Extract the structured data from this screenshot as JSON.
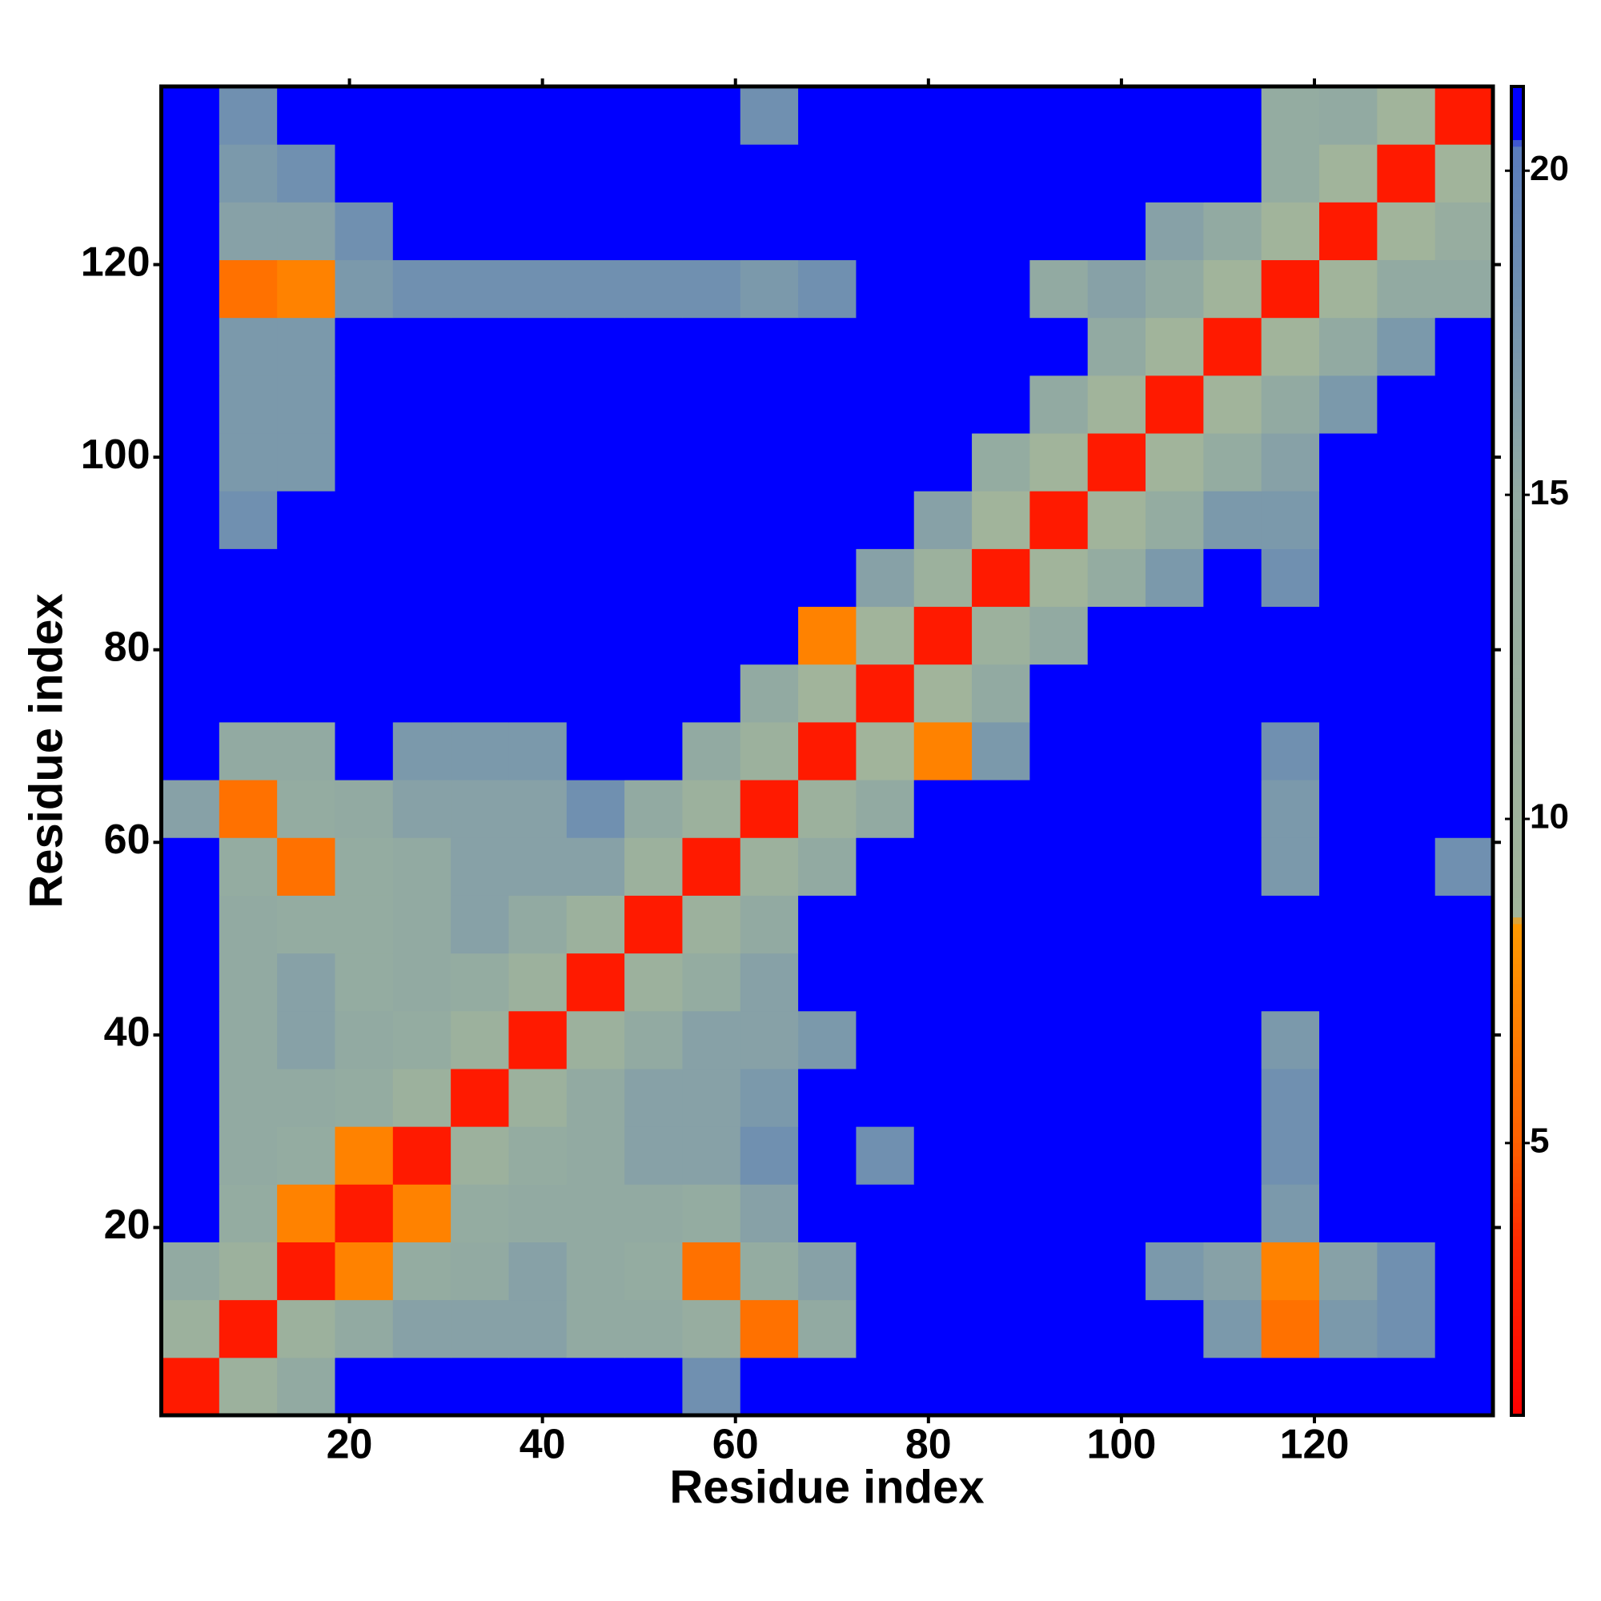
{
  "chart_data": {
    "type": "heatmap",
    "xlabel": "Residue index",
    "ylabel": "Residue index",
    "xlim": [
      0.5,
      138.5
    ],
    "ylim": [
      0.5,
      138.5
    ],
    "xticks": [
      20,
      40,
      60,
      80,
      100,
      120
    ],
    "yticks": [
      20,
      40,
      60,
      80,
      100,
      120
    ],
    "xbins": [
      0.5,
      6.5,
      12.5,
      18.5,
      24.5,
      30.5,
      36.5,
      42.5,
      48.5,
      54.5,
      60.5,
      66.5,
      72.5,
      78.5,
      84.5,
      90.5,
      96.5,
      102.5,
      108.5,
      114.5,
      120.5,
      126.5,
      132.5,
      138.5
    ],
    "ybins": [
      0.5,
      6.5,
      12.5,
      18.5,
      24.5,
      30.5,
      36.5,
      42.5,
      48.5,
      54.5,
      60.5,
      66.5,
      72.5,
      78.5,
      84.5,
      90.5,
      96.5,
      102.5,
      108.5,
      114.5,
      120.5,
      126.5,
      132.5,
      138.5
    ],
    "values": [
      [
        2.5,
        11,
        15,
        21,
        21,
        21,
        21,
        21,
        21,
        18,
        21,
        21,
        21,
        21,
        21,
        21,
        21,
        21,
        21,
        21,
        21,
        21,
        21
      ],
      [
        11,
        2.5,
        11,
        15,
        16,
        16,
        16,
        15,
        15,
        13,
        6,
        15,
        21,
        21,
        21,
        21,
        21,
        21,
        17,
        6,
        17,
        18,
        21
      ],
      [
        15,
        11,
        2.5,
        7,
        14,
        15,
        16,
        15,
        14,
        6,
        14,
        16,
        21,
        21,
        21,
        21,
        21,
        17,
        16,
        7,
        16,
        18,
        21
      ],
      [
        21,
        14,
        7,
        2.5,
        7,
        14,
        15,
        15,
        15,
        14,
        16,
        21,
        21,
        21,
        21,
        21,
        21,
        21,
        21,
        17,
        21,
        21,
        21
      ],
      [
        21,
        15,
        14,
        7,
        2.5,
        11,
        14,
        15,
        16,
        16,
        18,
        21,
        18,
        21,
        21,
        21,
        21,
        21,
        21,
        18,
        21,
        21,
        21
      ],
      [
        21,
        15,
        15,
        14,
        11,
        2.5,
        11,
        15,
        16,
        16,
        17,
        21,
        21,
        21,
        21,
        21,
        21,
        21,
        21,
        18,
        21,
        21,
        21
      ],
      [
        21,
        15,
        16,
        15,
        14,
        11,
        2.5,
        11,
        15,
        16,
        16,
        17,
        21,
        21,
        21,
        21,
        21,
        21,
        21,
        17,
        21,
        21,
        21
      ],
      [
        21,
        15,
        16,
        14,
        15,
        14,
        11,
        2.5,
        11,
        14,
        16,
        21,
        21,
        21,
        21,
        21,
        21,
        21,
        21,
        21,
        21,
        21,
        21
      ],
      [
        21,
        15,
        14,
        14,
        15,
        16,
        15,
        11,
        2.5,
        11,
        15,
        21,
        21,
        21,
        21,
        21,
        21,
        21,
        21,
        21,
        21,
        21,
        21
      ],
      [
        21,
        14,
        6,
        14,
        15,
        16,
        16,
        16,
        11,
        2.5,
        11,
        15,
        21,
        21,
        21,
        21,
        21,
        21,
        21,
        17,
        21,
        21,
        18
      ],
      [
        16,
        6,
        14,
        15,
        16,
        16,
        16,
        18,
        15,
        11,
        2.5,
        11,
        15,
        21,
        21,
        21,
        21,
        21,
        21,
        17,
        21,
        21,
        21
      ],
      [
        21,
        15,
        15,
        21,
        17,
        17,
        17,
        21,
        21,
        15,
        11,
        2.5,
        9,
        7,
        17,
        21,
        21,
        21,
        21,
        18,
        21,
        21,
        21
      ],
      [
        21,
        21,
        21,
        21,
        21,
        21,
        21,
        21,
        21,
        21,
        15,
        9,
        2.5,
        9,
        15,
        21,
        21,
        21,
        21,
        21,
        21,
        21,
        21
      ],
      [
        21,
        21,
        21,
        21,
        21,
        21,
        21,
        21,
        21,
        21,
        21,
        7,
        9,
        2.5,
        11,
        15,
        21,
        21,
        21,
        21,
        21,
        21,
        21
      ],
      [
        21,
        21,
        21,
        21,
        21,
        21,
        21,
        21,
        21,
        21,
        21,
        21,
        16,
        11,
        2.5,
        9,
        14,
        17,
        21,
        18,
        21,
        21,
        21
      ],
      [
        21,
        18,
        21,
        21,
        21,
        21,
        21,
        21,
        21,
        21,
        21,
        21,
        21,
        16,
        9,
        2.5,
        9,
        14,
        17,
        17,
        21,
        21,
        21
      ],
      [
        21,
        17,
        17,
        21,
        21,
        21,
        21,
        21,
        21,
        21,
        21,
        21,
        21,
        21,
        14,
        9,
        2.5,
        9,
        14,
        16,
        21,
        21,
        21
      ],
      [
        21,
        17,
        17,
        21,
        21,
        21,
        21,
        21,
        21,
        21,
        21,
        21,
        21,
        21,
        21,
        15,
        9,
        2.5,
        9,
        15,
        17,
        21,
        21
      ],
      [
        21,
        17,
        17,
        21,
        21,
        21,
        21,
        21,
        21,
        21,
        21,
        21,
        21,
        21,
        21,
        21,
        15,
        9,
        2.5,
        9,
        15,
        17,
        21
      ],
      [
        21,
        6,
        7,
        17,
        18,
        18,
        18,
        18,
        18,
        18,
        17,
        18,
        21,
        21,
        21,
        15,
        16,
        15,
        9,
        2.5,
        9,
        15,
        15
      ],
      [
        21,
        16,
        16,
        18,
        21,
        21,
        21,
        21,
        21,
        21,
        21,
        21,
        21,
        21,
        21,
        21,
        21,
        16,
        15,
        9,
        2.5,
        9,
        13
      ],
      [
        21,
        17,
        18,
        21,
        21,
        21,
        21,
        21,
        21,
        21,
        21,
        21,
        21,
        21,
        21,
        21,
        21,
        21,
        21,
        14,
        9,
        2.5,
        9
      ],
      [
        21,
        18,
        21,
        21,
        21,
        21,
        21,
        21,
        21,
        21,
        18,
        21,
        21,
        21,
        21,
        21,
        21,
        21,
        21,
        14,
        15,
        9,
        2.5
      ]
    ],
    "clim": [
      0.8,
      21.3
    ],
    "cticks": [
      5,
      10,
      15,
      20
    ],
    "colorscale": [
      [
        0.8,
        "#ff0000"
      ],
      [
        3.5,
        "#ff2a00"
      ],
      [
        5,
        "#ff6000"
      ],
      [
        8.4,
        "#ff9a00"
      ],
      [
        8.5,
        "#a2b59a"
      ],
      [
        15,
        "#92aaa2"
      ],
      [
        18,
        "#7090b0"
      ],
      [
        20.4,
        "#5a7cbc"
      ],
      [
        20.5,
        "#0000ff"
      ],
      [
        21.3,
        "#0000ff"
      ]
    ]
  }
}
